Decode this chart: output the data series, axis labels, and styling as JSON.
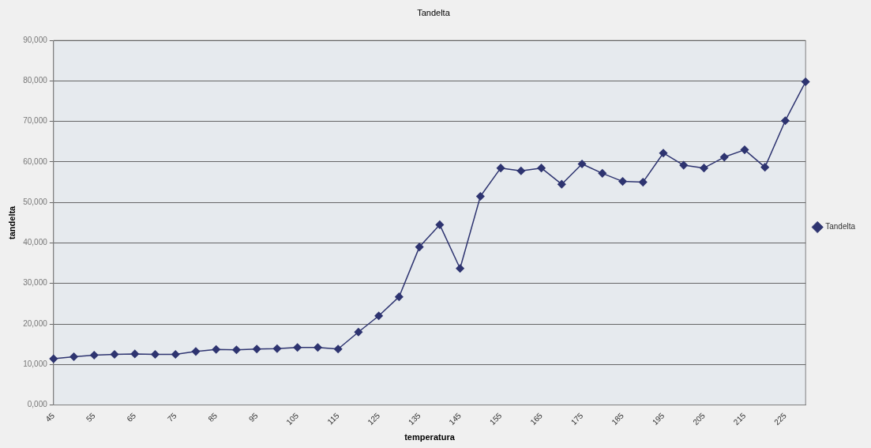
{
  "chart_data": {
    "type": "line",
    "title": "Tandelta",
    "xlabel": "temperatura",
    "ylabel": "tandelta",
    "categories": [
      "45",
      null,
      "55",
      null,
      "65",
      null,
      "75",
      null,
      "85",
      null,
      "95",
      null,
      "105",
      null,
      "115",
      null,
      "125",
      null,
      "135",
      null,
      "145",
      null,
      "155",
      null,
      "165",
      null,
      "175",
      null,
      "185",
      null,
      "195",
      null,
      "205",
      null,
      "215",
      null,
      "225",
      null
    ],
    "series": [
      {
        "name": "Tandelta",
        "color": "#2e3470",
        "values": [
          11400,
          11900,
          12300,
          12500,
          12600,
          12500,
          12500,
          13200,
          13700,
          13600,
          13800,
          13900,
          14200,
          14200,
          13800,
          18000,
          22000,
          26700,
          39000,
          44500,
          33700,
          51500,
          58500,
          57800,
          58500,
          54500,
          59500,
          57200,
          55200,
          55000,
          62200,
          59200,
          58500,
          61200,
          63000,
          58700,
          70200,
          79800
        ]
      }
    ],
    "ylim": [
      0,
      90000
    ],
    "yticks": [
      {
        "value": 0,
        "label": "0,000"
      },
      {
        "value": 10000,
        "label": "10,000"
      },
      {
        "value": 20000,
        "label": "20,000"
      },
      {
        "value": 30000,
        "label": "30,000"
      },
      {
        "value": 40000,
        "label": "40,000"
      },
      {
        "value": 50000,
        "label": "50,000"
      },
      {
        "value": 60000,
        "label": "60,000"
      },
      {
        "value": 70000,
        "label": "70,000"
      },
      {
        "value": 80000,
        "label": "80,000"
      },
      {
        "value": 90000,
        "label": "90,000"
      }
    ],
    "grid": "y",
    "legend": "right",
    "marker": "diamond",
    "line_style": "solid"
  }
}
